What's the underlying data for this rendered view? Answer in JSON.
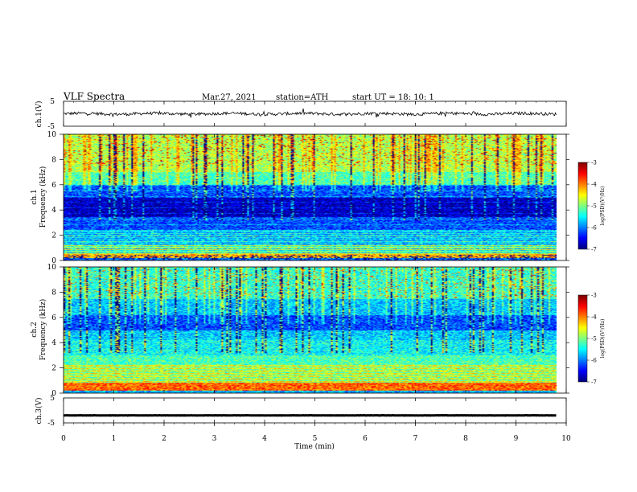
{
  "header": {
    "title": "VLF  Spectra",
    "date": "Mar.27, 2021",
    "station": "station=ATH",
    "start": "start  UT  =    18: 10: 1"
  },
  "chart_data": [
    {
      "type": "line",
      "ylabel": "ch.1(V)",
      "ylim": [
        -5,
        5
      ],
      "yticks": [
        "5",
        "-5"
      ],
      "xlim": [
        0,
        10
      ],
      "series": [
        {
          "values_note": "noisy trace around 0 V",
          "mean": 0,
          "spread": 0.6
        }
      ]
    },
    {
      "type": "heatmap",
      "ylabel_top": "ch.1",
      "ylabel": "Frequency  (kHz)",
      "ylim": [
        0,
        10
      ],
      "yticks": [
        "0",
        "2",
        "4",
        "6",
        "8",
        "10"
      ],
      "xlim": [
        0,
        9.8
      ],
      "colorbar": {
        "label": "log(PSD)(V²/Hz)",
        "range": [
          -7,
          -3
        ],
        "ticks": [
          "-3",
          "-4",
          "-5",
          "-6",
          "-7"
        ]
      }
    },
    {
      "type": "heatmap",
      "ylabel_top": "ch.2",
      "ylabel": "Frequency  (kHz)",
      "ylim": [
        0,
        10
      ],
      "yticks": [
        "0",
        "2",
        "4",
        "6",
        "8",
        "10"
      ],
      "xlim": [
        0,
        9.8
      ],
      "colorbar": {
        "label": "log(PSD)(V²/Hz)",
        "range": [
          -7,
          -3
        ],
        "ticks": [
          "-3",
          "-4",
          "-5",
          "-6",
          "-7"
        ]
      }
    },
    {
      "type": "line",
      "ylabel": "ch.3(V)",
      "ylim": [
        -5,
        5
      ],
      "yticks": [
        "5",
        "-5"
      ],
      "xlim": [
        0,
        10
      ],
      "series": [
        {
          "values_note": "flat trace near -2 V",
          "mean": -2,
          "spread": 0.05
        }
      ]
    }
  ],
  "xaxis": {
    "label": "Time  (min)",
    "ticks": [
      "0",
      "1",
      "2",
      "3",
      "4",
      "5",
      "6",
      "7",
      "8",
      "9",
      "10"
    ]
  }
}
